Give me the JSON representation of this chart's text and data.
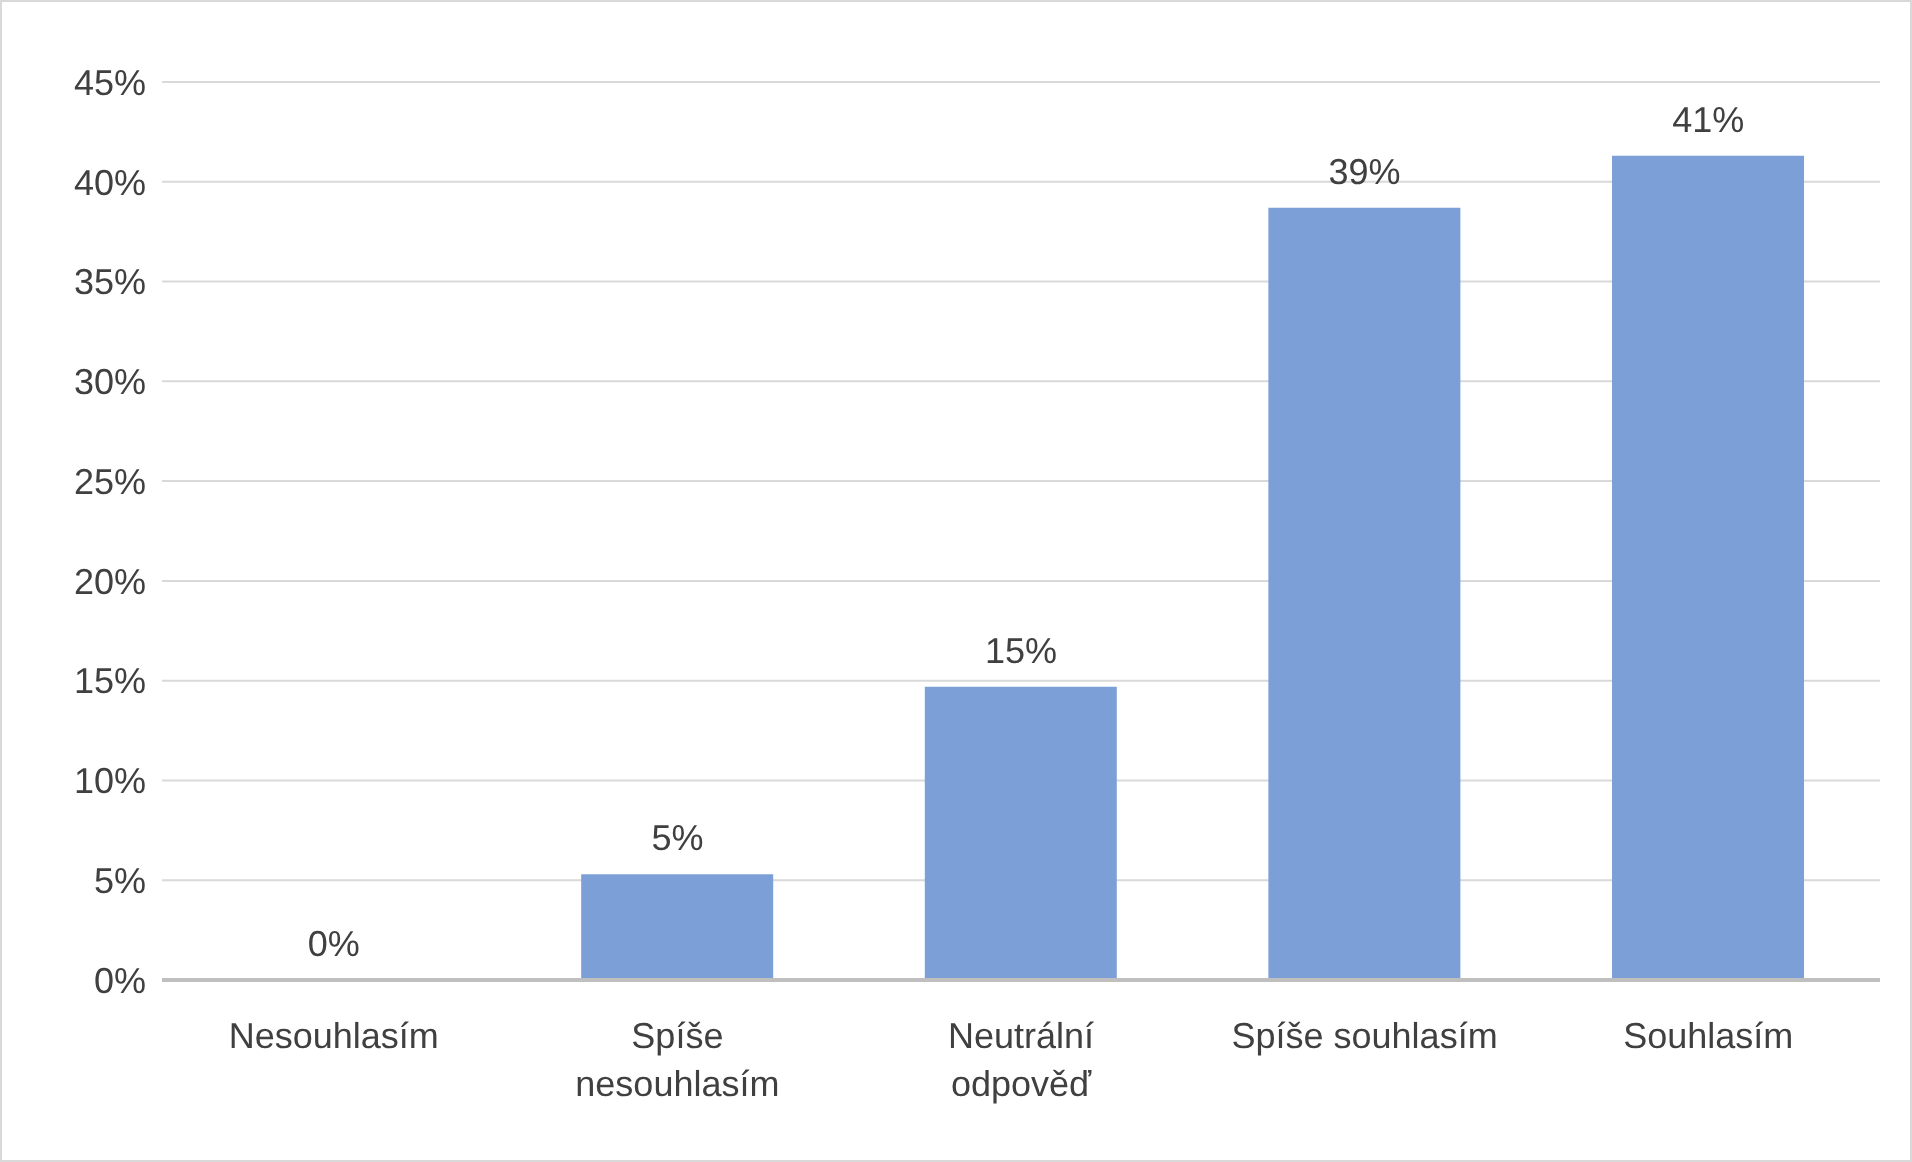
{
  "chart_data": {
    "type": "bar",
    "categories": [
      "Nesouhlasím",
      "Spíše nesouhlasím",
      "Neutrální odpověď",
      "Spíše souhlasím",
      "Souhlasím"
    ],
    "values": [
      0,
      5.3,
      14.7,
      38.7,
      41.3
    ],
    "value_labels": [
      "0%",
      "5%",
      "15%",
      "39%",
      "41%"
    ],
    "color": "#7b9fd6",
    "ylim": [
      0,
      45
    ],
    "yticks": [
      {
        "value": 0,
        "label": "0%"
      },
      {
        "value": 5,
        "label": "5%"
      },
      {
        "value": 10,
        "label": "10%"
      },
      {
        "value": 15,
        "label": "15%"
      },
      {
        "value": 20,
        "label": "20%"
      },
      {
        "value": 25,
        "label": "25%"
      },
      {
        "value": 30,
        "label": "30%"
      },
      {
        "value": 35,
        "label": "35%"
      },
      {
        "value": 40,
        "label": "40%"
      },
      {
        "value": 45,
        "label": "45%"
      }
    ],
    "grid": "y"
  }
}
